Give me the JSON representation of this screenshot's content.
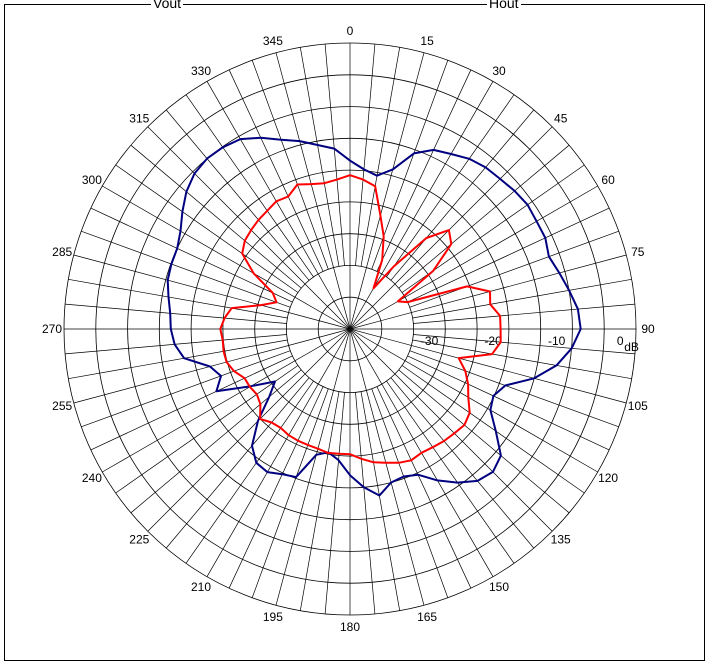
{
  "header": {
    "left": "Vout",
    "right": "Hout"
  },
  "chart_data": {
    "type": "polar",
    "units": "dB",
    "radial_range": [
      -40,
      5
    ],
    "radial_ticks": [
      -30,
      -20,
      -10,
      0
    ],
    "rings_db": [
      -35,
      -30,
      -25,
      -20,
      -15,
      -10,
      -5,
      0,
      5
    ],
    "angle_ticks": [
      0,
      15,
      30,
      45,
      60,
      75,
      90,
      105,
      120,
      135,
      150,
      165,
      180,
      195,
      210,
      225,
      240,
      255,
      270,
      285,
      300,
      315,
      330,
      345
    ],
    "grid": true,
    "series": [
      {
        "color": "#000080",
        "angles": [
          0,
          5,
          10,
          15,
          20,
          25,
          30,
          35,
          40,
          45,
          50,
          55,
          60,
          65,
          70,
          75,
          80,
          85,
          90,
          95,
          100,
          105,
          110,
          115,
          120,
          125,
          130,
          135,
          140,
          145,
          150,
          155,
          160,
          165,
          170,
          175,
          180,
          185,
          190,
          195,
          200,
          205,
          210,
          215,
          220,
          225,
          230,
          235,
          240,
          245,
          250,
          255,
          260,
          265,
          270,
          275,
          280,
          285,
          290,
          295,
          300,
          305,
          310,
          315,
          320,
          325,
          330,
          335,
          340,
          345,
          350,
          355,
          360
        ],
        "values": [
          -13.5,
          -14.8,
          -15.5,
          -14,
          -10.6,
          -8.9,
          -8.2,
          -7.3,
          -6.8,
          -6.6,
          -6.2,
          -5.9,
          -6.1,
          -6.1,
          -6.7,
          -5.9,
          -5.0,
          -4.0,
          -3.7,
          -5.0,
          -7.0,
          -10.0,
          -14.0,
          -15.1,
          -14.5,
          -12.0,
          -9.0,
          -8.2,
          -8.8,
          -10.5,
          -12.5,
          -14.7,
          -15.3,
          -15.0,
          -13.4,
          -15.0,
          -17.0,
          -19.3,
          -20.3,
          -19.5,
          -15.2,
          -14.8,
          -14.0,
          -14.3,
          -16.0,
          -19.5,
          -23.4,
          -25.6,
          -22.0,
          -16.8,
          -18.4,
          -17.2,
          -13.5,
          -12.3,
          -11.8,
          -11.6,
          -11.0,
          -10.3,
          -10.1,
          -10.0,
          -9.2,
          -7.8,
          -6.4,
          -5.4,
          -5.0,
          -5.1,
          -5.5,
          -6.8,
          -8.3,
          -9.4,
          -10.6,
          -11.5,
          -13.5
        ]
      },
      {
        "color": "#ff0000",
        "angles": [
          0,
          5,
          10,
          15,
          20,
          25,
          30,
          35,
          40,
          45,
          50,
          55,
          60,
          65,
          70,
          75,
          80,
          85,
          90,
          95,
          100,
          105,
          110,
          115,
          120,
          125,
          130,
          135,
          140,
          145,
          150,
          155,
          160,
          165,
          170,
          175,
          180,
          185,
          190,
          195,
          200,
          205,
          210,
          215,
          220,
          225,
          230,
          235,
          240,
          245,
          250,
          255,
          260,
          265,
          270,
          275,
          280,
          285,
          290,
          295,
          300,
          305,
          310,
          315,
          320,
          325,
          330,
          335,
          340,
          345,
          350,
          355,
          360
        ],
        "values": [
          -15.8,
          -16.4,
          -17.2,
          -21.5,
          -24.5,
          -28.0,
          -32.6,
          -28.0,
          -21.3,
          -18.0,
          -19.2,
          -24.0,
          -31.3,
          -30.0,
          -20.4,
          -17.2,
          -17.6,
          -16.3,
          -16.3,
          -16.2,
          -17.3,
          -22.3,
          -20.7,
          -19.5,
          -18.5,
          -17.0,
          -16.5,
          -16.8,
          -17.0,
          -17.3,
          -17.5,
          -17.2,
          -17.6,
          -18.2,
          -18.7,
          -19.5,
          -20.3,
          -20.3,
          -20.2,
          -20.5,
          -20.6,
          -20.6,
          -20.7,
          -21.0,
          -20.8,
          -20.0,
          -21.6,
          -22.1,
          -21.8,
          -21.7,
          -20.6,
          -19.9,
          -19.8,
          -19.9,
          -19.6,
          -20.2,
          -21.1,
          -25.5,
          -27.7,
          -26.6,
          -22.5,
          -19.3,
          -18.4,
          -18.0,
          -17.6,
          -17.3,
          -16.8,
          -17.0,
          -15.8,
          -16.4,
          -16.7,
          -16.4,
          -15.8
        ]
      }
    ]
  }
}
